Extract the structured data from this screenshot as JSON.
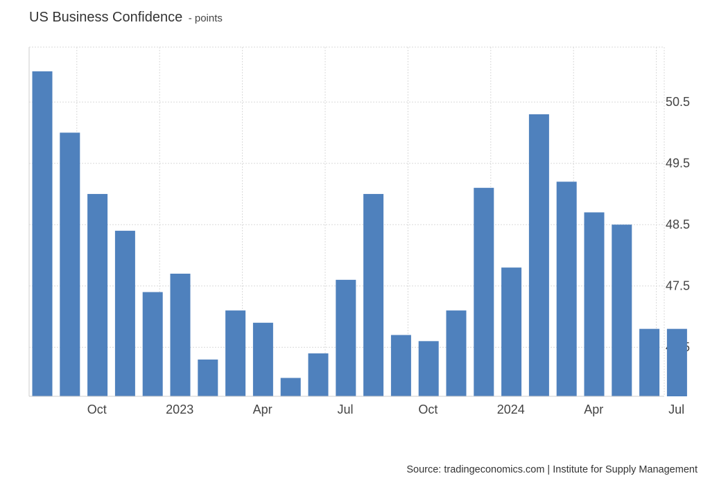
{
  "header": {
    "title": "US Business Confidence",
    "unit_suffix": "- points"
  },
  "footer": {
    "source": "Source: tradingeconomics.com | Institute for Supply Management"
  },
  "colors": {
    "bar": "#4f81bd",
    "grid": "#d9d9d9",
    "axis": "#cccccc",
    "text": "#444444"
  },
  "chart_data": {
    "type": "bar",
    "title": "US Business Confidence",
    "ylabel": "",
    "xlabel": "",
    "ylim": [
      45.7,
      51.2
    ],
    "grid": true,
    "y_axis_side": "right",
    "categories": [
      "2022-08",
      "2022-09",
      "2022-10",
      "2022-11",
      "2022-12",
      "2023-01",
      "2023-02",
      "2023-03",
      "2023-04",
      "2023-05",
      "2023-06",
      "2023-07",
      "2023-08",
      "2023-09",
      "2023-10",
      "2023-11",
      "2023-12",
      "2024-01",
      "2024-02",
      "2024-03",
      "2024-04",
      "2024-05",
      "2024-06",
      "2024-07"
    ],
    "values": [
      51.0,
      50.0,
      49.0,
      48.4,
      47.4,
      47.7,
      46.3,
      47.1,
      46.9,
      46.0,
      46.4,
      47.6,
      49.0,
      46.7,
      46.6,
      47.1,
      49.1,
      47.8,
      50.3,
      49.2,
      48.7,
      48.5,
      46.8,
      46.8
    ],
    "y_ticks": [
      "46.5",
      "47.5",
      "48.5",
      "49.5",
      "50.5"
    ],
    "x_ticks": [
      {
        "label": "Oct",
        "index": 1
      },
      {
        "label": "2023",
        "index": 4
      },
      {
        "label": "Apr",
        "index": 7
      },
      {
        "label": "Jul",
        "index": 10
      },
      {
        "label": "Oct",
        "index": 13
      },
      {
        "label": "2024",
        "index": 16
      },
      {
        "label": "Apr",
        "index": 19
      },
      {
        "label": "Jul",
        "index": 22
      }
    ]
  }
}
